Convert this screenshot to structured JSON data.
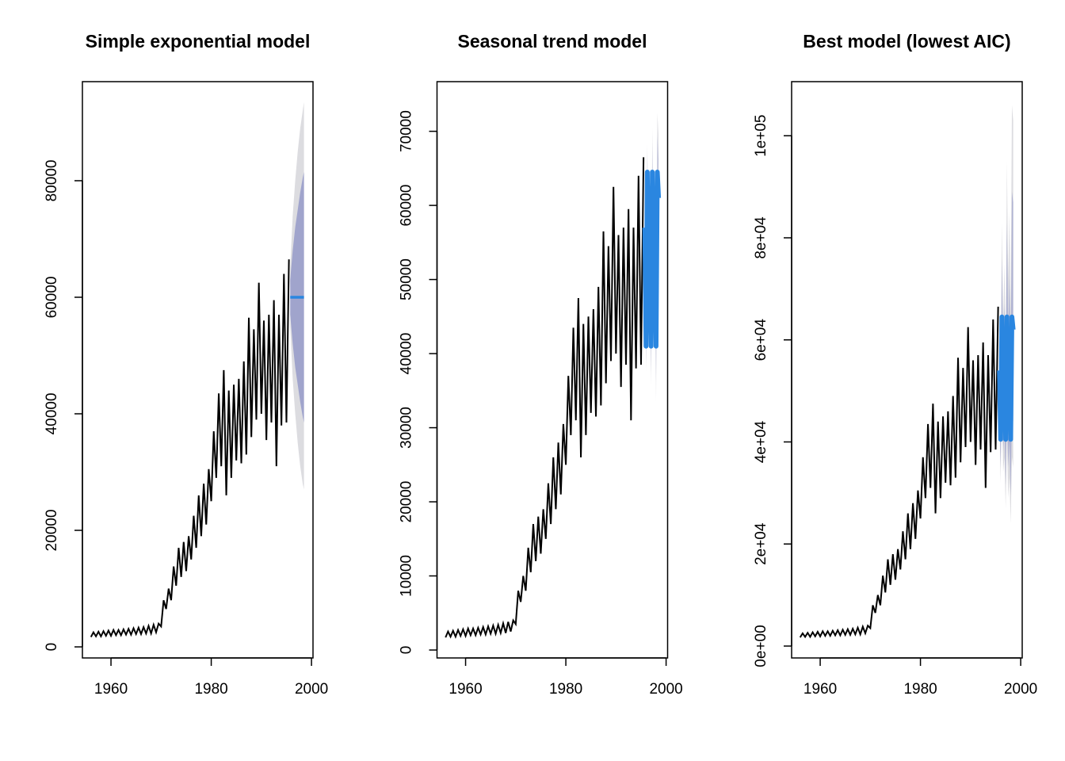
{
  "chart_data": [
    {
      "type": "line",
      "title": "Simple exponential model",
      "x": [
        1956,
        1956.5,
        1957,
        1957.5,
        1958,
        1958.5,
        1959,
        1959.5,
        1960,
        1960.5,
        1961,
        1961.5,
        1962,
        1962.5,
        1963,
        1963.5,
        1964,
        1964.5,
        1965,
        1965.5,
        1966,
        1966.5,
        1967,
        1967.5,
        1968,
        1968.5,
        1969,
        1969.5,
        1970,
        1970.5,
        1971,
        1971.5,
        1972,
        1972.5,
        1973,
        1973.5,
        1974,
        1974.5,
        1975,
        1975.5,
        1976,
        1976.5,
        1977,
        1977.5,
        1978,
        1978.5,
        1979,
        1979.5,
        1980,
        1980.5,
        1981,
        1981.5,
        1982,
        1982.5,
        1983,
        1983.5,
        1984,
        1984.5,
        1985,
        1985.5,
        1986,
        1986.5,
        1987,
        1987.5,
        1988,
        1988.5,
        1989,
        1989.5,
        1990,
        1990.5,
        1991,
        1991.5,
        1992,
        1992.5,
        1993,
        1993.5,
        1994,
        1994.5,
        1995,
        1995.5
      ],
      "series": [
        {
          "color": "#000000",
          "values": [
            1700,
            2500,
            1800,
            2600,
            1800,
            2700,
            1900,
            2800,
            1900,
            2900,
            2000,
            2900,
            2000,
            3000,
            2100,
            3100,
            2100,
            3200,
            2200,
            3300,
            2200,
            3400,
            2300,
            3600,
            2300,
            3800,
            2500,
            4000,
            3500,
            8000,
            6500,
            10000,
            8000,
            13800,
            10500,
            17000,
            12000,
            18000,
            13000,
            19000,
            15000,
            22500,
            17000,
            26000,
            19000,
            28000,
            21000,
            30500,
            25000,
            37000,
            29000,
            43500,
            31000,
            47500,
            26000,
            44000,
            29000,
            45000,
            32000,
            46000,
            31500,
            49000,
            33000,
            56500,
            36000,
            54500,
            39000,
            62500,
            40000,
            56000,
            35500,
            57000,
            38500,
            59500,
            31000,
            57000,
            38000,
            64000,
            38500,
            66500
          ]
        }
      ],
      "forecast": {
        "color": "#2a86e0",
        "band80": "#a0a4cc",
        "band95": "#dcdce0",
        "x": [
          1995.75,
          1996.25,
          1996.75,
          1997.25,
          1997.75,
          1998.25,
          1998.5
        ],
        "mean": [
          60000,
          60000,
          60000,
          60000,
          60000,
          60000,
          60000
        ],
        "lo80": [
          57000,
          52000,
          48000,
          45000,
          42000,
          39500,
          38500
        ],
        "hi80": [
          63000,
          68000,
          72000,
          75000,
          78000,
          80500,
          81500
        ],
        "lo95": [
          55000,
          46000,
          40000,
          35000,
          31000,
          28000,
          27000
        ],
        "hi95": [
          65000,
          74000,
          80000,
          85000,
          89000,
          92000,
          93500
        ]
      },
      "xlim": [
        1954.3,
        2000.3
      ],
      "ylim": [
        -1900,
        97000
      ],
      "xticks": [
        1960,
        1980,
        2000
      ],
      "yticks": [
        0,
        20000,
        40000,
        60000,
        80000
      ]
    },
    {
      "type": "line",
      "title": "Seasonal trend model",
      "x": [
        1956,
        1956.5,
        1957,
        1957.5,
        1958,
        1958.5,
        1959,
        1959.5,
        1960,
        1960.5,
        1961,
        1961.5,
        1962,
        1962.5,
        1963,
        1963.5,
        1964,
        1964.5,
        1965,
        1965.5,
        1966,
        1966.5,
        1967,
        1967.5,
        1968,
        1968.5,
        1969,
        1969.5,
        1970,
        1970.5,
        1971,
        1971.5,
        1972,
        1972.5,
        1973,
        1973.5,
        1974,
        1974.5,
        1975,
        1975.5,
        1976,
        1976.5,
        1977,
        1977.5,
        1978,
        1978.5,
        1979,
        1979.5,
        1980,
        1980.5,
        1981,
        1981.5,
        1982,
        1982.5,
        1983,
        1983.5,
        1984,
        1984.5,
        1985,
        1985.5,
        1986,
        1986.5,
        1987,
        1987.5,
        1988,
        1988.5,
        1989,
        1989.5,
        1990,
        1990.5,
        1991,
        1991.5,
        1992,
        1992.5,
        1993,
        1993.5,
        1994,
        1994.5,
        1995,
        1995.5
      ],
      "series": [
        {
          "color": "#000000",
          "values": [
            1700,
            2500,
            1800,
            2600,
            1800,
            2700,
            1900,
            2800,
            1900,
            2900,
            2000,
            2900,
            2000,
            3000,
            2100,
            3100,
            2100,
            3200,
            2200,
            3300,
            2200,
            3400,
            2300,
            3600,
            2300,
            3800,
            2500,
            4000,
            3500,
            8000,
            6500,
            10000,
            8000,
            13800,
            10500,
            17000,
            12000,
            18000,
            13000,
            19000,
            15000,
            22500,
            17000,
            26000,
            19000,
            28000,
            21000,
            30500,
            25000,
            37000,
            29000,
            43500,
            31000,
            47500,
            26000,
            44000,
            29000,
            45000,
            32000,
            46000,
            31500,
            49000,
            33000,
            56500,
            36000,
            54500,
            39000,
            62500,
            40000,
            56000,
            35500,
            57000,
            38500,
            59500,
            31000,
            57000,
            38000,
            64000,
            38500,
            66500
          ]
        }
      ],
      "forecast": {
        "color": "#2a86e0",
        "band80": "#c4c6dc",
        "band95": "#e2e2e6",
        "x": [
          1995.75,
          1996,
          1996.25,
          1996.5,
          1996.75,
          1997,
          1997.25,
          1997.5,
          1997.75,
          1998,
          1998.25,
          1998.5
        ],
        "mean": [
          57000,
          41000,
          64500,
          48000,
          57000,
          41000,
          64500,
          48000,
          57000,
          41000,
          64500,
          61000
        ],
        "lo80": [
          55000,
          38700,
          61900,
          45100,
          53800,
          37500,
          60700,
          43900,
          52600,
          36300,
          59500,
          55700
        ],
        "hi80": [
          59000,
          43300,
          67100,
          50900,
          60200,
          44500,
          68300,
          52100,
          61400,
          45700,
          69500,
          66300
        ],
        "lo95": [
          54000,
          37500,
          60500,
          43500,
          52000,
          35500,
          58500,
          41500,
          50000,
          33500,
          56500,
          52500
        ],
        "hi95": [
          60000,
          44500,
          68500,
          52500,
          62000,
          46500,
          70500,
          54500,
          64000,
          48500,
          72500,
          69500
        ]
      },
      "xlim": [
        1954.3,
        2000.3
      ],
      "ylim": [
        -1070,
        76700
      ],
      "xticks": [
        1960,
        1980,
        2000
      ],
      "yticks": [
        0,
        10000,
        20000,
        30000,
        40000,
        50000,
        60000,
        70000
      ]
    },
    {
      "type": "line",
      "title": "Best model (lowest AIC)",
      "x": [
        1956,
        1956.5,
        1957,
        1957.5,
        1958,
        1958.5,
        1959,
        1959.5,
        1960,
        1960.5,
        1961,
        1961.5,
        1962,
        1962.5,
        1963,
        1963.5,
        1964,
        1964.5,
        1965,
        1965.5,
        1966,
        1966.5,
        1967,
        1967.5,
        1968,
        1968.5,
        1969,
        1969.5,
        1970,
        1970.5,
        1971,
        1971.5,
        1972,
        1972.5,
        1973,
        1973.5,
        1974,
        1974.5,
        1975,
        1975.5,
        1976,
        1976.5,
        1977,
        1977.5,
        1978,
        1978.5,
        1979,
        1979.5,
        1980,
        1980.5,
        1981,
        1981.5,
        1982,
        1982.5,
        1983,
        1983.5,
        1984,
        1984.5,
        1985,
        1985.5,
        1986,
        1986.5,
        1987,
        1987.5,
        1988,
        1988.5,
        1989,
        1989.5,
        1990,
        1990.5,
        1991,
        1991.5,
        1992,
        1992.5,
        1993,
        1993.5,
        1994,
        1994.5,
        1995,
        1995.5
      ],
      "series": [
        {
          "color": "#000000",
          "values": [
            1700,
            2500,
            1800,
            2600,
            1800,
            2700,
            1900,
            2800,
            1900,
            2900,
            2000,
            2900,
            2000,
            3000,
            2100,
            3100,
            2100,
            3200,
            2200,
            3300,
            2200,
            3400,
            2300,
            3600,
            2300,
            3800,
            2500,
            4000,
            3500,
            8000,
            6500,
            10000,
            8000,
            13800,
            10500,
            17000,
            12000,
            18000,
            13000,
            19000,
            15000,
            22500,
            17000,
            26000,
            19000,
            28000,
            21000,
            30500,
            25000,
            37000,
            29000,
            43500,
            31000,
            47500,
            26000,
            44000,
            29000,
            45000,
            32000,
            46000,
            31500,
            49000,
            33000,
            56500,
            36000,
            54500,
            39000,
            62500,
            40000,
            56000,
            35500,
            57000,
            38500,
            59500,
            31000,
            57000,
            38000,
            64000,
            38500,
            66500
          ]
        }
      ],
      "forecast": {
        "color": "#2a86e0",
        "band80": "#b0b3d2",
        "band95": "#dcdce0",
        "x": [
          1995.75,
          1996,
          1996.25,
          1996.5,
          1996.75,
          1997,
          1997.25,
          1997.5,
          1997.75,
          1998,
          1998.25,
          1998.5
        ],
        "mean": [
          54000,
          40500,
          64500,
          47000,
          54000,
          40500,
          64500,
          47000,
          54000,
          40500,
          64500,
          62000
        ],
        "lo80": [
          48000,
          35000,
          54000,
          38000,
          43000,
          31500,
          49000,
          35000,
          40000,
          29500,
          46000,
          44000
        ],
        "hi80": [
          60000,
          46500,
          76000,
          57000,
          67000,
          51500,
          83000,
          62000,
          72000,
          55000,
          89000,
          87000
        ],
        "lo95": [
          45000,
          32000,
          49000,
          34000,
          37000,
          27000,
          41000,
          29000,
          33000,
          24000,
          37000,
          35000
        ],
        "hi95": [
          64000,
          50000,
          83000,
          63000,
          75000,
          58000,
          95000,
          72000,
          85000,
          66000,
          106000,
          103000
        ]
      },
      "xlim": [
        1954.3,
        2000.3
      ],
      "ylim": [
        -2330,
        110600
      ],
      "xticks": [
        1960,
        1980,
        2000
      ],
      "yticks": [
        {
          "value": 0,
          "label": "0e+00"
        },
        {
          "value": 20000,
          "label": "2e+04"
        },
        {
          "value": 40000,
          "label": "4e+04"
        },
        {
          "value": 60000,
          "label": "6e+04"
        },
        {
          "value": 80000,
          "label": "8e+04"
        },
        {
          "value": 100000,
          "label": "1e+05"
        }
      ]
    }
  ]
}
